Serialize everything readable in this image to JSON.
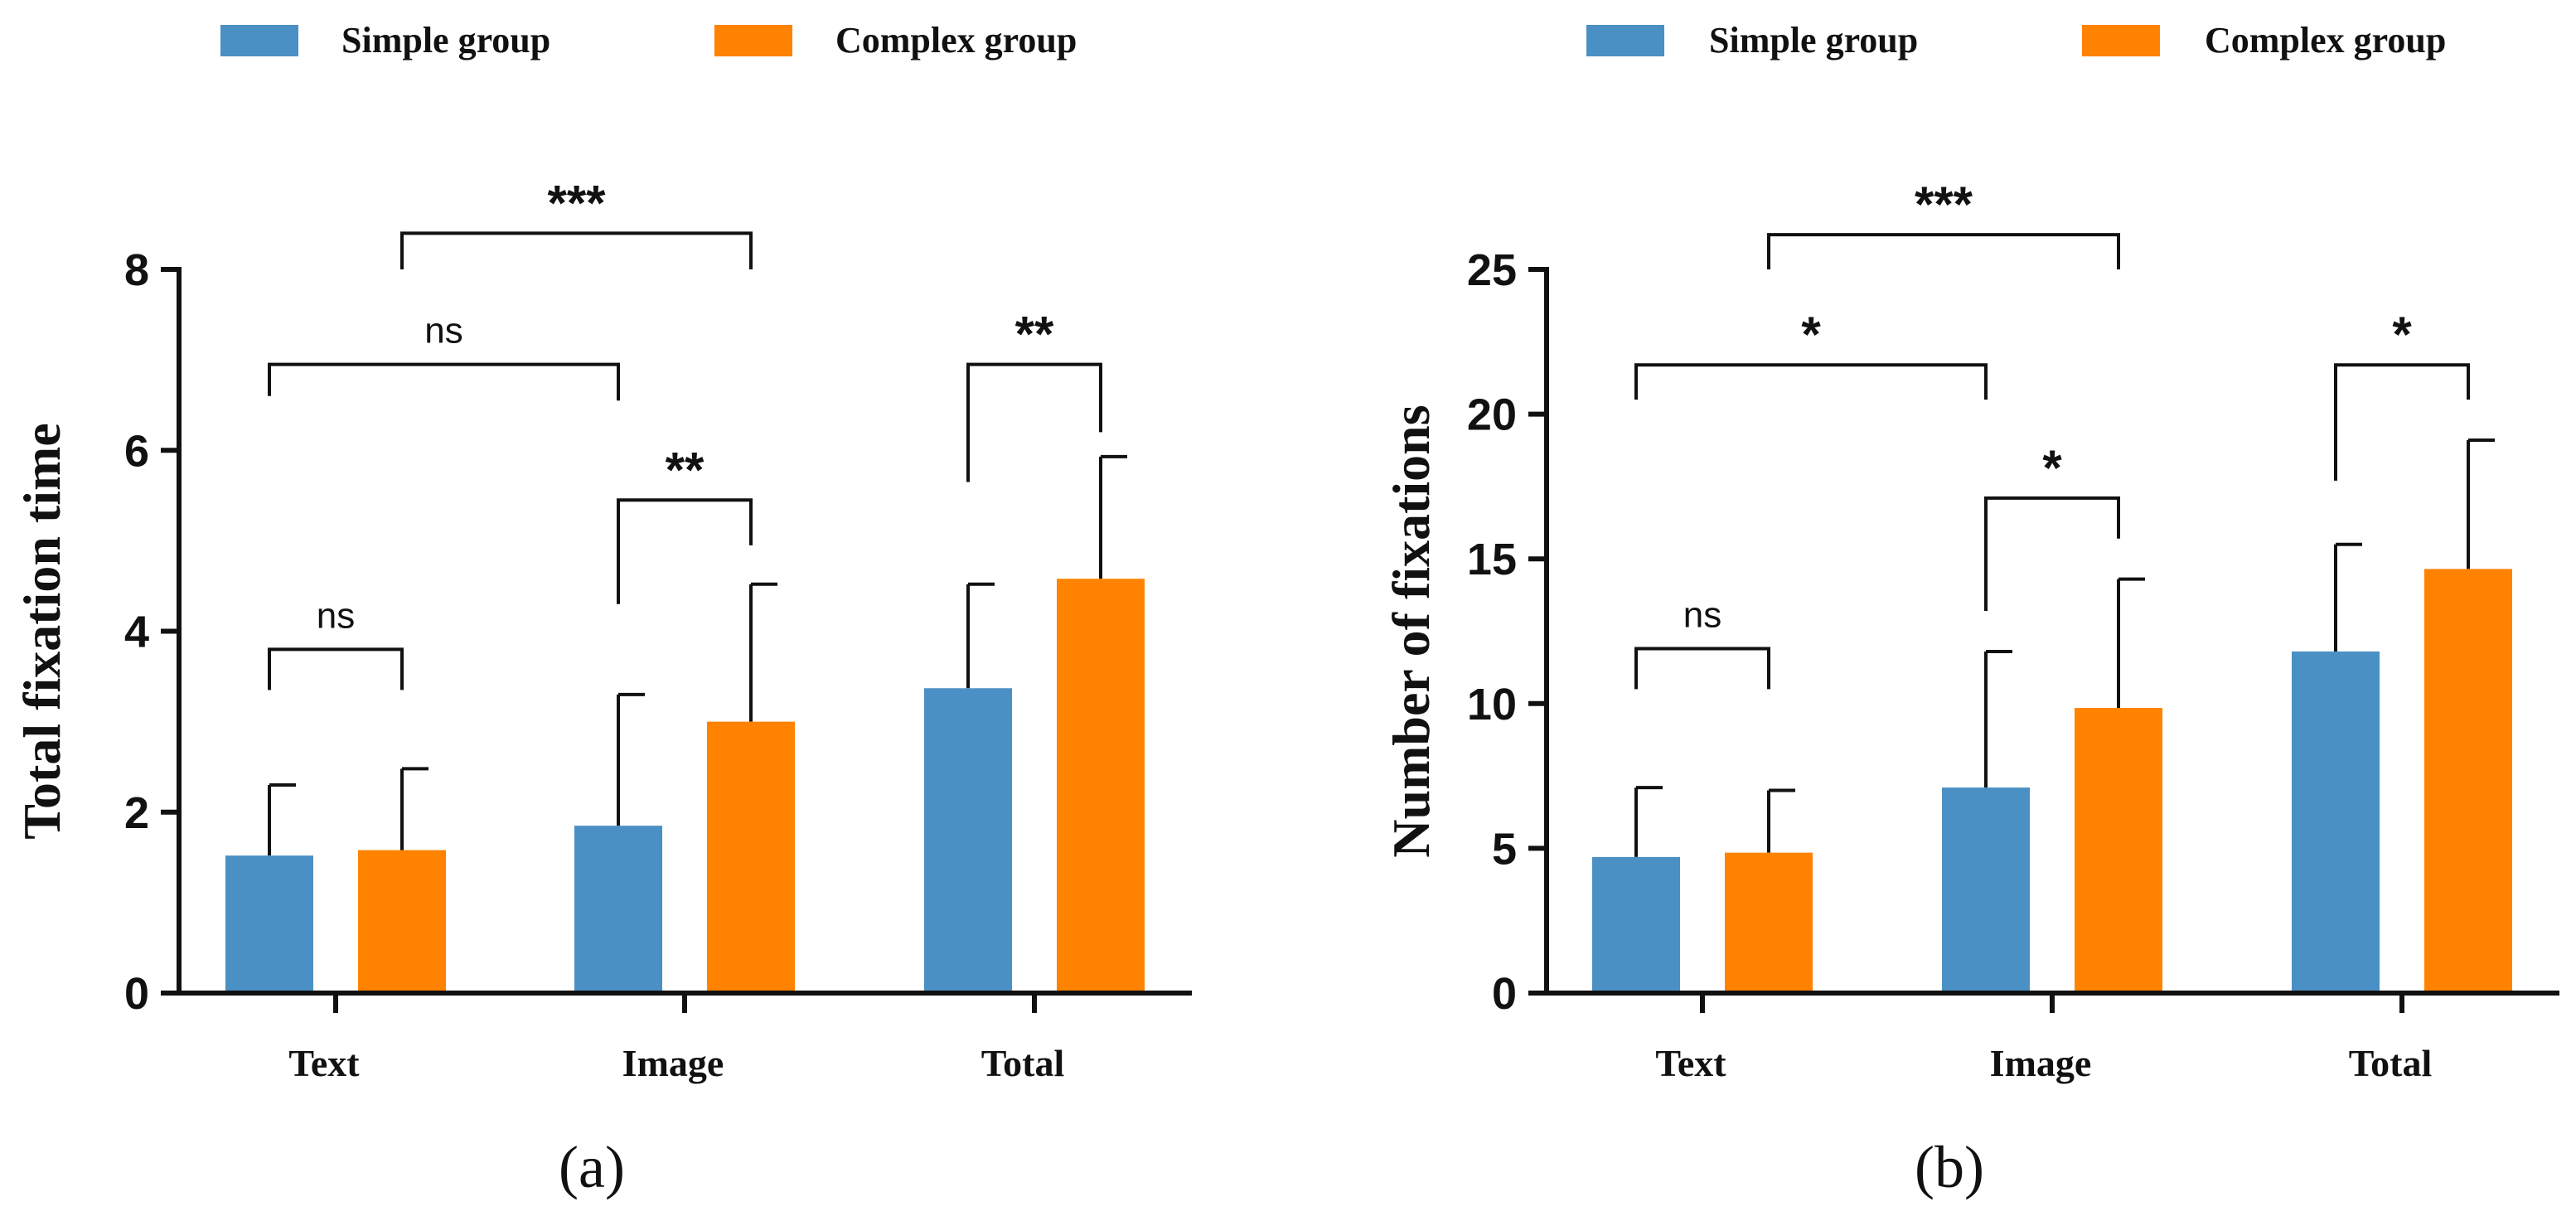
{
  "legend": {
    "series": [
      {
        "name": "Simple group",
        "color": "#4a90c4"
      },
      {
        "name": "Complex group",
        "color": "#ff8200"
      }
    ]
  },
  "chart_data": [
    {
      "type": "bar",
      "panel_label": "(a)",
      "title": "",
      "xlabel": "",
      "ylabel": "Total fixation time",
      "ylim": [
        0,
        8
      ],
      "yticks": [
        0,
        2,
        4,
        6,
        8
      ],
      "ytick_labels": [
        "0",
        "2",
        "4",
        "6",
        "8"
      ],
      "categories": [
        "Text",
        "Image",
        "Total"
      ],
      "series": [
        {
          "name": "Simple group",
          "values": [
            1.52,
            1.85,
            3.37
          ],
          "error": [
            0.78,
            1.45,
            1.15
          ]
        },
        {
          "name": "Complex group",
          "values": [
            1.58,
            3.0,
            4.58
          ],
          "error": [
            0.9,
            1.52,
            1.35
          ]
        }
      ],
      "significance": [
        {
          "label": "***",
          "from": {
            "category": 0,
            "series": 1
          },
          "to": {
            "category": 1,
            "series": 1
          },
          "y": 8.4,
          "y_ends": [
            8.0,
            8.0
          ]
        },
        {
          "label": "ns",
          "from": {
            "category": 0,
            "series": 0
          },
          "to": {
            "category": 1,
            "series": 0
          },
          "y": 6.95,
          "y_ends": [
            6.6,
            6.55
          ]
        },
        {
          "label": "**",
          "from": {
            "category": 2,
            "series": 0
          },
          "to": {
            "category": 2,
            "series": 1
          },
          "y": 6.95,
          "y_ends": [
            5.65,
            6.2
          ]
        },
        {
          "label": "**",
          "from": {
            "category": 1,
            "series": 0
          },
          "to": {
            "category": 1,
            "series": 1
          },
          "y": 5.45,
          "y_ends": [
            4.3,
            4.95
          ]
        },
        {
          "label": "ns",
          "from": {
            "category": 0,
            "series": 0
          },
          "to": {
            "category": 0,
            "series": 1
          },
          "y": 3.8,
          "y_ends": [
            3.35,
            3.35
          ]
        }
      ]
    },
    {
      "type": "bar",
      "panel_label": "(b)",
      "title": "",
      "xlabel": "",
      "ylabel": "Number of fixations",
      "ylim": [
        0,
        25
      ],
      "yticks": [
        0,
        5,
        10,
        15,
        20,
        25
      ],
      "ytick_labels": [
        "0",
        "5",
        "10",
        "15",
        "20",
        "25"
      ],
      "categories": [
        "Text",
        "Image",
        "Total"
      ],
      "series": [
        {
          "name": "Simple group",
          "values": [
            4.7,
            7.1,
            11.8
          ],
          "error": [
            2.4,
            4.7,
            3.7
          ]
        },
        {
          "name": "Complex group",
          "values": [
            4.85,
            9.85,
            14.65
          ],
          "error": [
            2.15,
            4.45,
            4.45
          ]
        }
      ],
      "significance": [
        {
          "label": "***",
          "from": {
            "category": 0,
            "series": 1
          },
          "to": {
            "category": 1,
            "series": 1
          },
          "y": 26.2,
          "y_ends": [
            25.0,
            25.0
          ]
        },
        {
          "label": "*",
          "from": {
            "category": 0,
            "series": 0
          },
          "to": {
            "category": 1,
            "series": 0
          },
          "y": 21.7,
          "y_ends": [
            20.5,
            20.5
          ]
        },
        {
          "label": "*",
          "from": {
            "category": 2,
            "series": 0
          },
          "to": {
            "category": 2,
            "series": 1
          },
          "y": 21.7,
          "y_ends": [
            17.7,
            20.5
          ]
        },
        {
          "label": "*",
          "from": {
            "category": 1,
            "series": 0
          },
          "to": {
            "category": 1,
            "series": 1
          },
          "y": 17.1,
          "y_ends": [
            13.2,
            15.7
          ]
        },
        {
          "label": "ns",
          "from": {
            "category": 0,
            "series": 0
          },
          "to": {
            "category": 0,
            "series": 1
          },
          "y": 11.9,
          "y_ends": [
            10.5,
            10.5
          ]
        }
      ]
    }
  ]
}
